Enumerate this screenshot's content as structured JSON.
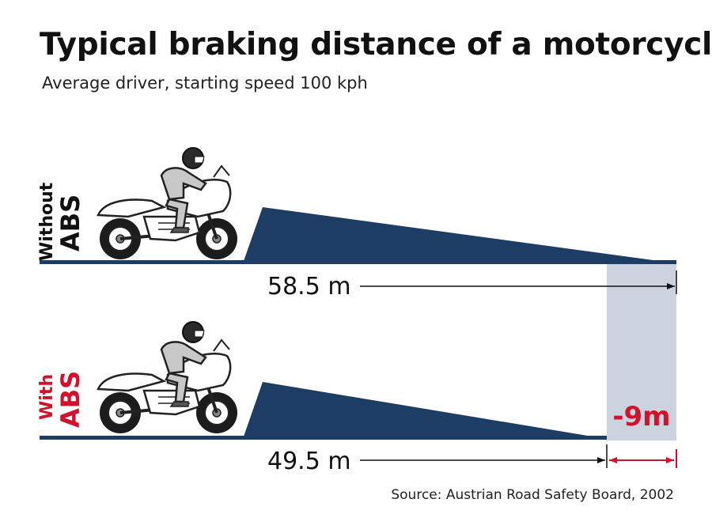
{
  "title": "Typical braking distance of a motorcycle",
  "subtitle": "Average driver, starting speed 100 kph",
  "source": "Source: Austrian Road Safety Board, 2002",
  "colors": {
    "navy": "#1d3d64",
    "red": "#d2112d",
    "shade": "#ccd2de",
    "bike_outline": "#222222",
    "rider_gray": "#c8c8c8"
  },
  "rows": [
    {
      "id": "without-abs",
      "label_line1": "Without",
      "label_line2": "ABS",
      "label_color": "#111111",
      "distance_label": "58.5 m",
      "distance_m": 58.5
    },
    {
      "id": "with-abs",
      "label_line1": "With",
      "label_line2": "ABS",
      "label_color": "#d2112d",
      "distance_label": "49.5 m",
      "distance_m": 49.5
    }
  ],
  "difference": {
    "label": "-9m",
    "value_m": -9
  },
  "icons": [
    "motorcycle-rider-icon"
  ]
}
